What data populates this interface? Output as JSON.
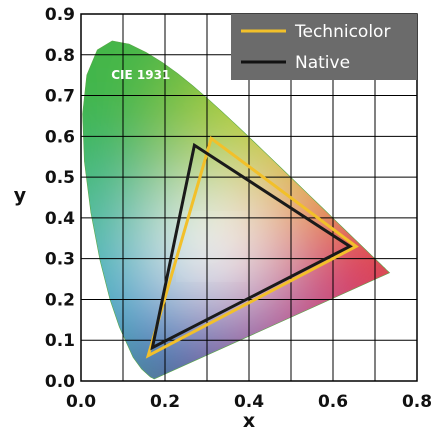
{
  "chart_data": {
    "type": "scatter",
    "title": "",
    "xlabel": "x",
    "ylabel": "y",
    "xlim": [
      0.0,
      0.8
    ],
    "ylim": [
      0.0,
      0.9
    ],
    "xticks": [
      "0.0",
      "0.2",
      "0.4",
      "0.6",
      "0.8"
    ],
    "yticks": [
      "0.0",
      "0.1",
      "0.2",
      "0.3",
      "0.4",
      "0.5",
      "0.6",
      "0.7",
      "0.8",
      "0.9"
    ],
    "grid": true,
    "legend_position": "top-right",
    "annotation": "CIE 1931",
    "spectral_locus": [
      [
        0.1741,
        0.005
      ],
      [
        0.1703,
        0.0073
      ],
      [
        0.1666,
        0.0089
      ],
      [
        0.1644,
        0.0109
      ],
      [
        0.1566,
        0.0177
      ],
      [
        0.144,
        0.0297
      ],
      [
        0.1241,
        0.0578
      ],
      [
        0.0913,
        0.1327
      ],
      [
        0.0687,
        0.2007
      ],
      [
        0.0454,
        0.295
      ],
      [
        0.0235,
        0.4127
      ],
      [
        0.0082,
        0.5384
      ],
      [
        0.0039,
        0.6548
      ],
      [
        0.0139,
        0.7502
      ],
      [
        0.0389,
        0.812
      ],
      [
        0.0743,
        0.8338
      ],
      [
        0.1142,
        0.8262
      ],
      [
        0.1547,
        0.8059
      ],
      [
        0.1929,
        0.7816
      ],
      [
        0.2296,
        0.7543
      ],
      [
        0.2658,
        0.7243
      ],
      [
        0.3016,
        0.6923
      ],
      [
        0.3373,
        0.6589
      ],
      [
        0.3731,
        0.6245
      ],
      [
        0.4087,
        0.5896
      ],
      [
        0.4441,
        0.5547
      ],
      [
        0.4788,
        0.5202
      ],
      [
        0.5125,
        0.4866
      ],
      [
        0.5448,
        0.4544
      ],
      [
        0.5752,
        0.4242
      ],
      [
        0.6029,
        0.3965
      ],
      [
        0.627,
        0.3725
      ],
      [
        0.6482,
        0.3514
      ],
      [
        0.6658,
        0.334
      ],
      [
        0.6801,
        0.3197
      ],
      [
        0.6915,
        0.3083
      ],
      [
        0.7006,
        0.2993
      ],
      [
        0.7079,
        0.292
      ],
      [
        0.714,
        0.2859
      ],
      [
        0.719,
        0.2809
      ],
      [
        0.723,
        0.277
      ],
      [
        0.726,
        0.274
      ],
      [
        0.7283,
        0.2717
      ],
      [
        0.73,
        0.27
      ],
      [
        0.7347,
        0.2653
      ]
    ],
    "series": [
      {
        "name": "Technicolor",
        "color": "#f2c02a",
        "points": [
          [
            0.31,
            0.595
          ],
          [
            0.655,
            0.33
          ],
          [
            0.16,
            0.062
          ]
        ]
      },
      {
        "name": "Native",
        "color": "#1a1a1a",
        "points": [
          [
            0.27,
            0.578
          ],
          [
            0.64,
            0.33
          ],
          [
            0.17,
            0.082
          ]
        ]
      }
    ],
    "colors": {
      "locus_green": "#44b649",
      "locus_blue": "#1d4ea6",
      "locus_red": "#e8124a",
      "legend_bg": "#6b6b6b",
      "grid": "#000000",
      "white_point": "#ffffff"
    }
  }
}
